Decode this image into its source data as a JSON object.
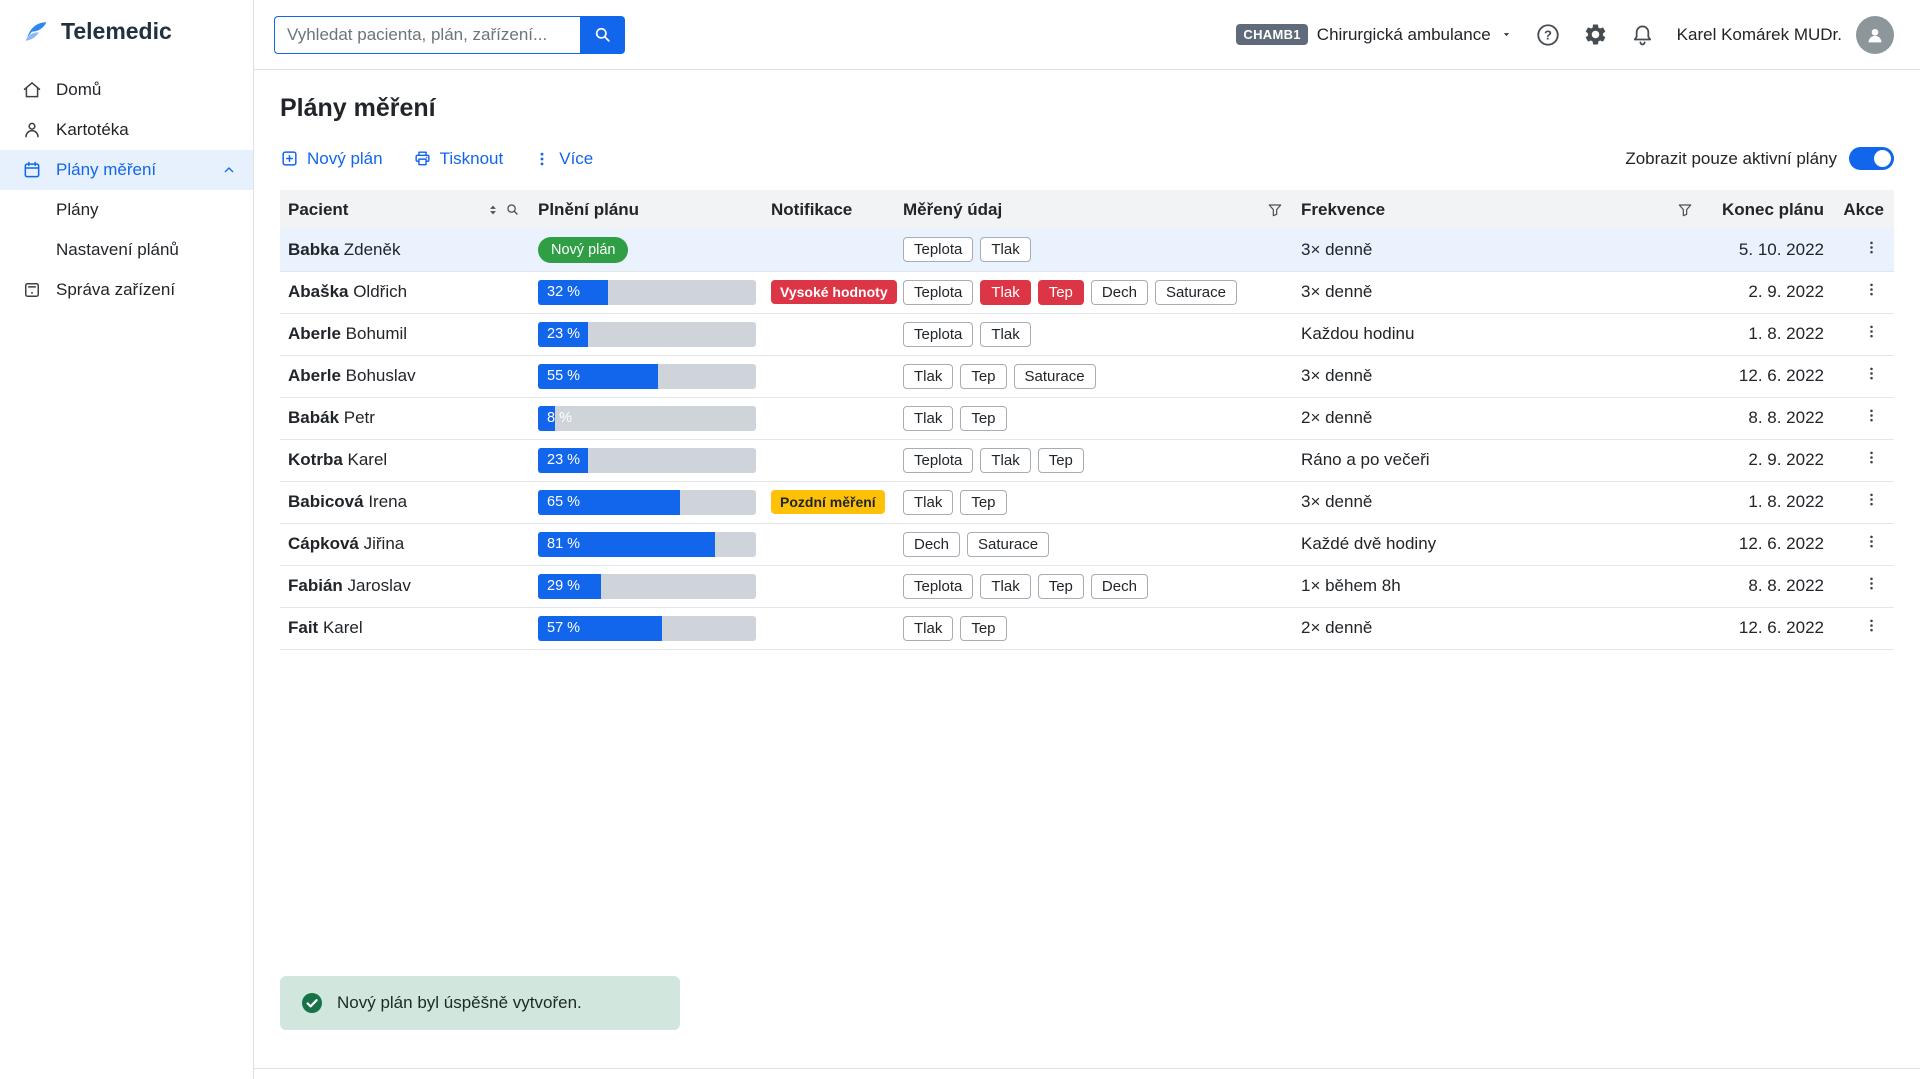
{
  "colors": {
    "primary": "#1266eb",
    "danger": "#dc3545",
    "warning": "#ffc107",
    "success": "#2f9e44",
    "toast-bg": "#d1e7dd",
    "toast-icon": "#157347",
    "row-selected": "#e9f2fd",
    "sidebar-active-bg": "#e7f1fd",
    "header-bg": "#f1f3f5",
    "border": "#dee2e6",
    "track": "#ced4da",
    "chip-border": "#a6adb4",
    "text": "#212529",
    "muted": "#6c757d",
    "org-badge-bg": "#5f6b7b",
    "avatar-bg": "#8c969b"
  },
  "app": {
    "name": "Telemedic"
  },
  "sidebar": {
    "items": [
      {
        "label": "Domů"
      },
      {
        "label": "Kartotéka"
      },
      {
        "label": "Plány měření",
        "active": true,
        "children": [
          {
            "label": "Plány"
          },
          {
            "label": "Nastavení plánů"
          }
        ]
      },
      {
        "label": "Správa zařízení"
      }
    ]
  },
  "topbar": {
    "search": {
      "placeholder": "Vyhledat pacienta, plán, zařízení..."
    },
    "org": {
      "badge": "CHAMB1",
      "name": "Chirurgická ambulance"
    },
    "user": {
      "name": "Karel Komárek MUDr."
    }
  },
  "page": {
    "title": "Plány měření",
    "toolbar": {
      "new_plan": "Nový plán",
      "print": "Tisknout",
      "more": "Více"
    },
    "filter_toggle": {
      "label": "Zobrazit pouze aktivní plány",
      "on": true
    }
  },
  "table": {
    "columns": [
      "Pacient",
      "Plnění plánu",
      "Notifikace",
      "Měřený údaj",
      "Frekvence",
      "Konec plánu",
      "Akce"
    ],
    "rows": [
      {
        "surname": "Babka",
        "firstname": "Zdeněk",
        "status": "new",
        "status_label": "Nový plán",
        "progress": null,
        "progress_label": "",
        "notifications": [],
        "measures": [
          {
            "label": "Teplota"
          },
          {
            "label": "Tlak"
          }
        ],
        "frequency": "3× denně",
        "end_date": "5. 10. 2022",
        "selected": true
      },
      {
        "surname": "Abaška",
        "firstname": "Oldřich",
        "progress": 32,
        "progress_label": "32 %",
        "notifications": [
          {
            "label": "Vysoké hodnoty",
            "type": "danger"
          }
        ],
        "measures": [
          {
            "label": "Teplota"
          },
          {
            "label": "Tlak",
            "alert": true
          },
          {
            "label": "Tep",
            "alert": true
          },
          {
            "label": "Dech"
          },
          {
            "label": "Saturace"
          }
        ],
        "frequency": "3× denně",
        "end_date": "2. 9. 2022"
      },
      {
        "surname": "Aberle",
        "firstname": "Bohumil",
        "progress": 23,
        "progress_label": "23 %",
        "notifications": [],
        "measures": [
          {
            "label": "Teplota"
          },
          {
            "label": "Tlak"
          }
        ],
        "frequency": "Každou hodinu",
        "end_date": "1. 8. 2022"
      },
      {
        "surname": "Aberle",
        "firstname": "Bohuslav",
        "progress": 55,
        "progress_label": "55 %",
        "notifications": [],
        "measures": [
          {
            "label": "Tlak"
          },
          {
            "label": "Tep"
          },
          {
            "label": "Saturace"
          }
        ],
        "frequency": "3× denně",
        "end_date": "12. 6. 2022"
      },
      {
        "surname": "Babák",
        "firstname": "Petr",
        "progress": 8,
        "progress_label": "8 %",
        "notifications": [],
        "measures": [
          {
            "label": "Tlak"
          },
          {
            "label": "Tep"
          }
        ],
        "frequency": "2× denně",
        "end_date": "8. 8. 2022"
      },
      {
        "surname": "Kotrba",
        "firstname": "Karel",
        "progress": 23,
        "progress_label": "23 %",
        "notifications": [],
        "measures": [
          {
            "label": "Teplota"
          },
          {
            "label": "Tlak"
          },
          {
            "label": "Tep"
          }
        ],
        "frequency": "Ráno a po večeři",
        "end_date": "2. 9. 2022"
      },
      {
        "surname": "Babicová",
        "firstname": "Irena",
        "progress": 65,
        "progress_label": "65 %",
        "notifications": [
          {
            "label": "Pozdní měření",
            "type": "warning"
          }
        ],
        "measures": [
          {
            "label": "Tlak"
          },
          {
            "label": "Tep"
          }
        ],
        "frequency": "3× denně",
        "end_date": "1. 8. 2022"
      },
      {
        "surname": "Cápková",
        "firstname": "Jiřina",
        "progress": 81,
        "progress_label": "81 %",
        "notifications": [],
        "measures": [
          {
            "label": "Dech"
          },
          {
            "label": "Saturace"
          }
        ],
        "frequency": "Každé dvě hodiny",
        "end_date": "12. 6. 2022"
      },
      {
        "surname": "Fabián",
        "firstname": "Jaroslav",
        "progress": 29,
        "progress_label": "29 %",
        "notifications": [],
        "measures": [
          {
            "label": "Teplota"
          },
          {
            "label": "Tlak"
          },
          {
            "label": "Tep"
          },
          {
            "label": "Dech"
          }
        ],
        "frequency": "1× během 8h",
        "end_date": "8. 8. 2022"
      },
      {
        "surname": "Fait",
        "firstname": "Karel",
        "progress": 57,
        "progress_label": "57 %",
        "notifications": [],
        "measures": [
          {
            "label": "Tlak"
          },
          {
            "label": "Tep"
          }
        ],
        "frequency": "2× denně",
        "end_date": "12. 6. 2022"
      }
    ]
  },
  "toast": {
    "message": "Nový plán byl úspěšně vytvořen."
  }
}
